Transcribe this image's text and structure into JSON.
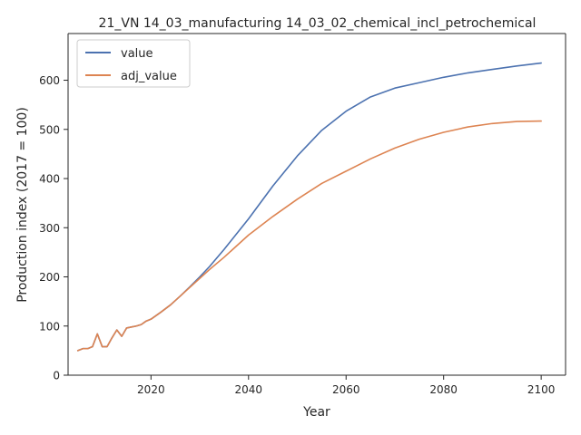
{
  "chart_data": {
    "type": "line",
    "title": "21_VN 14_03_manufacturing 14_03_02_chemical_incl_petrochemical",
    "xlabel": "Year",
    "ylabel": "Production index (2017 = 100)",
    "xlim": [
      2003,
      2105
    ],
    "ylim": [
      0,
      695
    ],
    "xticks": [
      2020,
      2040,
      2060,
      2080,
      2100
    ],
    "yticks": [
      0,
      100,
      200,
      300,
      400,
      500,
      600
    ],
    "grid": false,
    "legend_position": "top-left",
    "series": [
      {
        "name": "value",
        "color": "#4c72b0",
        "points": [
          [
            2005,
            50
          ],
          [
            2006,
            54
          ],
          [
            2007,
            54
          ],
          [
            2008,
            58
          ],
          [
            2009,
            84
          ],
          [
            2010,
            58
          ],
          [
            2011,
            58
          ],
          [
            2012,
            76
          ],
          [
            2013,
            92
          ],
          [
            2014,
            79
          ],
          [
            2015,
            96
          ],
          [
            2016,
            98
          ],
          [
            2017,
            100
          ],
          [
            2018,
            103
          ],
          [
            2019,
            110
          ],
          [
            2020,
            114
          ],
          [
            2022,
            128
          ],
          [
            2024,
            143
          ],
          [
            2026,
            161
          ],
          [
            2028,
            180
          ],
          [
            2030,
            200
          ],
          [
            2032,
            221
          ],
          [
            2035,
            256
          ],
          [
            2040,
            318
          ],
          [
            2045,
            385
          ],
          [
            2050,
            446
          ],
          [
            2055,
            498
          ],
          [
            2060,
            537
          ],
          [
            2065,
            566
          ],
          [
            2070,
            584
          ],
          [
            2075,
            595
          ],
          [
            2080,
            606
          ],
          [
            2085,
            615
          ],
          [
            2090,
            622
          ],
          [
            2095,
            629
          ],
          [
            2100,
            635
          ]
        ]
      },
      {
        "name": "adj_value",
        "color": "#dd8452",
        "points": [
          [
            2005,
            50
          ],
          [
            2006,
            54
          ],
          [
            2007,
            54
          ],
          [
            2008,
            58
          ],
          [
            2009,
            84
          ],
          [
            2010,
            58
          ],
          [
            2011,
            58
          ],
          [
            2012,
            76
          ],
          [
            2013,
            92
          ],
          [
            2014,
            79
          ],
          [
            2015,
            96
          ],
          [
            2016,
            98
          ],
          [
            2017,
            100
          ],
          [
            2018,
            103
          ],
          [
            2019,
            110
          ],
          [
            2020,
            114
          ],
          [
            2022,
            128
          ],
          [
            2024,
            143
          ],
          [
            2026,
            161
          ],
          [
            2028,
            179
          ],
          [
            2030,
            197
          ],
          [
            2032,
            215
          ],
          [
            2035,
            240
          ],
          [
            2040,
            285
          ],
          [
            2045,
            323
          ],
          [
            2050,
            358
          ],
          [
            2055,
            390
          ],
          [
            2060,
            415
          ],
          [
            2065,
            440
          ],
          [
            2070,
            462
          ],
          [
            2075,
            480
          ],
          [
            2080,
            494
          ],
          [
            2085,
            505
          ],
          [
            2090,
            512
          ],
          [
            2095,
            516
          ],
          [
            2100,
            517
          ]
        ]
      }
    ]
  }
}
